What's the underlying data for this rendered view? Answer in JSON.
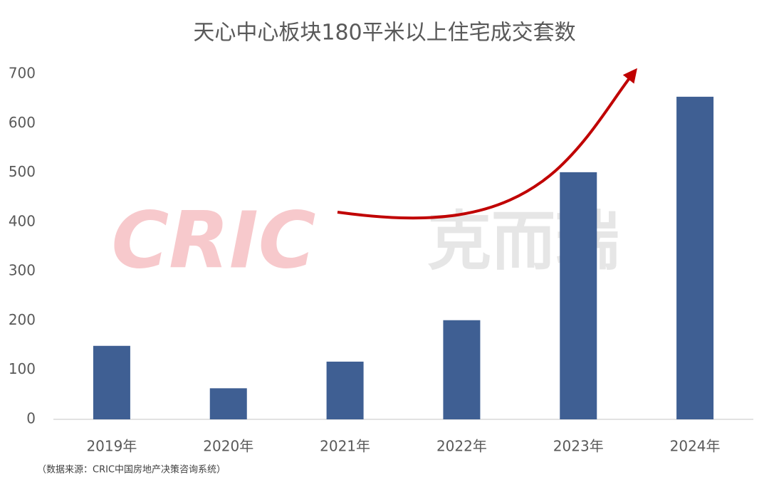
{
  "chart_data": {
    "type": "bar",
    "title": "天心中心板块180平米以上住宅成交套数",
    "categories": [
      "2019年",
      "2020年",
      "2021年",
      "2022年",
      "2023年",
      "2024年"
    ],
    "values": [
      149,
      63,
      117,
      201,
      501,
      654
    ],
    "color": "#3f5f93",
    "ylim": [
      0,
      700
    ],
    "yticks": [
      0,
      100,
      200,
      300,
      400,
      500,
      600,
      700
    ],
    "grid": false,
    "source": "（数据来源：CRIC中国房地产决策咨询系统）",
    "watermark": [
      "CRIC",
      "克而瑞"
    ]
  }
}
